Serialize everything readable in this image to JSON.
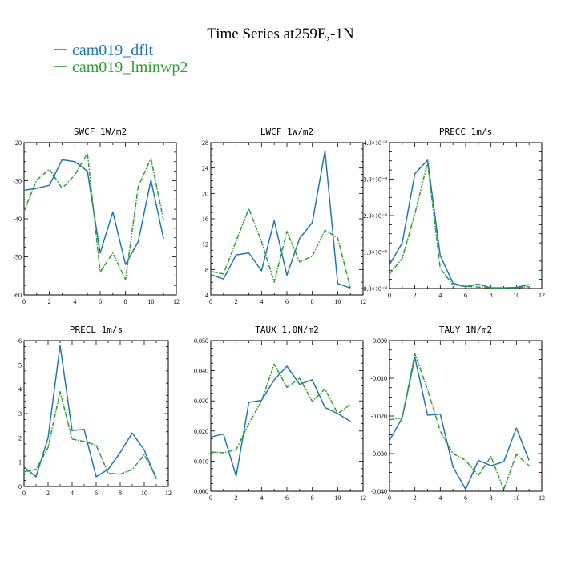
{
  "figure": {
    "title": "Time Series at259E,-1N",
    "legend": [
      {
        "name": "cam019_dflt",
        "color": "#1f77b4"
      },
      {
        "name": "cam019_lminwp2",
        "color": "#2ca02c"
      }
    ]
  },
  "chart_data": [
    {
      "type": "line",
      "title": "SWCF  1W/m2",
      "x": [
        0,
        1,
        2,
        3,
        4,
        5,
        6,
        7,
        8,
        9,
        10,
        11
      ],
      "xlim": [
        0,
        12
      ],
      "xticks": [
        "0",
        "2",
        "4",
        "6",
        "8",
        "10",
        "12"
      ],
      "ylim": [
        -60,
        -20
      ],
      "yticks": [
        "-60",
        "-50",
        "-40",
        "-30",
        "-20"
      ],
      "series": [
        {
          "name": "cam019_dflt",
          "values": [
            -32.5,
            -32,
            -31.2,
            -24.5,
            -25,
            -27.5,
            -49,
            -38.2,
            -52,
            -46,
            -29.8,
            -45.3
          ]
        },
        {
          "name": "cam019_lminwp2",
          "values": [
            -38,
            -29.8,
            -27,
            -32,
            -28.5,
            -22.8,
            -54,
            -49,
            -56,
            -31.5,
            -24.2,
            -40.5
          ]
        }
      ]
    },
    {
      "type": "line",
      "title": "LWCF  1W/m2",
      "x": [
        0,
        1,
        2,
        3,
        4,
        5,
        6,
        7,
        8,
        9,
        10,
        11
      ],
      "xlim": [
        0,
        12
      ],
      "xticks": [
        "0",
        "2",
        "4",
        "6",
        "8",
        "10",
        "12"
      ],
      "ylim": [
        4,
        28
      ],
      "yticks": [
        "4",
        "8",
        "12",
        "16",
        "20",
        "24",
        "28"
      ],
      "series": [
        {
          "name": "cam019_dflt",
          "values": [
            7.2,
            6.5,
            10.3,
            10.6,
            7.8,
            15.7,
            7.1,
            12.9,
            15.4,
            26.7,
            5.8,
            5.1
          ]
        },
        {
          "name": "cam019_lminwp2",
          "values": [
            7.7,
            7.3,
            12.5,
            17.6,
            12.4,
            6.0,
            14.0,
            9.2,
            10.1,
            14.2,
            13.0,
            5.1
          ]
        }
      ]
    },
    {
      "type": "line",
      "title": "PRECC  1m/s",
      "x": [
        0,
        1,
        2,
        3,
        4,
        5,
        6,
        7,
        8,
        9,
        10,
        11
      ],
      "xlim": [
        0,
        12
      ],
      "xticks": [
        "0",
        "2",
        "4",
        "6",
        "8",
        "10",
        "12"
      ],
      "ylim": [
        0,
        4e-08
      ],
      "yticks": [
        "0.0×10⁻⁸",
        "1.0×10⁻⁸",
        "2.0×10⁻⁸",
        "3.0×10⁻⁸",
        "4.0×10⁻⁸"
      ],
      "series": [
        {
          "name": "cam019_dflt",
          "values": [
            6.5e-09,
            1.25e-08,
            3.15e-08,
            3.52e-08,
            9e-09,
            1.5e-09,
            5e-10,
            1.2e-09,
            2e-10,
            2e-10,
            3e-10,
            1.1e-09
          ]
        },
        {
          "name": "cam019_lminwp2",
          "values": [
            4e-09,
            8.2e-09,
            2.05e-08,
            3.45e-08,
            5.5e-09,
            1e-09,
            6e-10,
            4e-10,
            2e-10,
            2e-10,
            2e-10,
            5e-10
          ]
        }
      ]
    },
    {
      "type": "line",
      "title": "PRECL  1m/s",
      "x": [
        0,
        1,
        2,
        3,
        4,
        5,
        6,
        7,
        8,
        9,
        10,
        11
      ],
      "xlim": [
        0,
        12
      ],
      "xticks": [
        "0",
        "2",
        "4",
        "6",
        "8",
        "10",
        "12"
      ],
      "ylim": [
        0,
        6.0
      ],
      "yticks": [
        "0",
        "1",
        "2",
        "3",
        "4",
        "5",
        "6"
      ],
      "series": [
        {
          "name": "cam019_dflt",
          "values": [
            0.8,
            0.4,
            2.0,
            5.8,
            2.3,
            2.35,
            0.4,
            0.7,
            1.4,
            2.2,
            1.5,
            0.3
          ]
        },
        {
          "name": "cam019_lminwp2",
          "values": [
            0.6,
            0.7,
            1.6,
            3.9,
            1.95,
            1.85,
            1.7,
            0.55,
            0.5,
            0.7,
            1.3,
            0.4
          ]
        }
      ]
    },
    {
      "type": "line",
      "title": "TAUX  1.0N/m2",
      "x": [
        0,
        1,
        2,
        3,
        4,
        5,
        6,
        7,
        8,
        9,
        10,
        11
      ],
      "xlim": [
        0,
        12
      ],
      "xticks": [
        "0",
        "2",
        "4",
        "6",
        "8",
        "10",
        "12"
      ],
      "ylim": [
        0,
        0.05
      ],
      "yticks": [
        "0.000",
        "0.010",
        "0.020",
        "0.030",
        "0.040",
        "0.050"
      ],
      "series": [
        {
          "name": "cam019_dflt",
          "values": [
            0.018,
            0.019,
            0.005,
            0.0295,
            0.0302,
            0.037,
            0.0415,
            0.0355,
            0.037,
            0.0278,
            0.0258,
            0.0232
          ]
        },
        {
          "name": "cam019_lminwp2",
          "values": [
            0.013,
            0.0128,
            0.0138,
            0.0225,
            0.03,
            0.0422,
            0.0345,
            0.0375,
            0.0298,
            0.034,
            0.0258,
            0.0288
          ]
        }
      ]
    },
    {
      "type": "line",
      "title": "TAUY  1N/m2",
      "x": [
        0,
        1,
        2,
        3,
        4,
        5,
        6,
        7,
        8,
        9,
        10,
        11
      ],
      "xlim": [
        0,
        12
      ],
      "xticks": [
        "0",
        "2",
        "4",
        "6",
        "8",
        "10",
        "12"
      ],
      "ylim": [
        -0.04,
        0.0
      ],
      "yticks": [
        "-0.040",
        "-0.030",
        "-0.020",
        "-0.010",
        "0.000"
      ],
      "series": [
        {
          "name": "cam019_dflt",
          "values": [
            -0.0265,
            -0.0205,
            -0.0045,
            -0.0198,
            -0.0195,
            -0.0335,
            -0.0395,
            -0.0318,
            -0.0332,
            -0.0322,
            -0.0232,
            -0.0318
          ]
        },
        {
          "name": "cam019_lminwp2",
          "values": [
            -0.021,
            -0.0205,
            -0.0035,
            -0.013,
            -0.024,
            -0.03,
            -0.0318,
            -0.0358,
            -0.0308,
            -0.0395,
            -0.0302,
            -0.0332
          ]
        }
      ]
    }
  ]
}
